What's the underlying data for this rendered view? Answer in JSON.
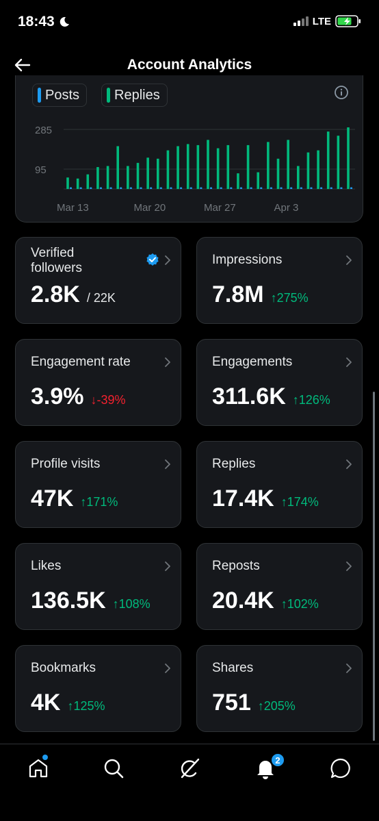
{
  "status_bar": {
    "time": "18:43",
    "network": "LTE"
  },
  "header": {
    "title": "Account Analytics"
  },
  "chart_data": {
    "type": "bar",
    "legend": [
      "Posts",
      "Replies"
    ],
    "y_ticks": [
      285,
      95
    ],
    "ylim": [
      0,
      300
    ],
    "x_tick_labels": [
      "Mar 13",
      "Mar 20",
      "Mar 27",
      "Apr 3"
    ],
    "series": [
      {
        "name": "Replies",
        "color": "#00ba7c",
        "values": [
          55,
          50,
          70,
          105,
          110,
          205,
          110,
          125,
          150,
          145,
          185,
          205,
          215,
          210,
          235,
          195,
          210,
          75,
          210,
          80,
          225,
          145,
          235,
          110,
          175,
          185,
          275,
          255,
          295
        ]
      },
      {
        "name": "Posts",
        "color": "#1d9bf0",
        "values": [
          8,
          8,
          8,
          8,
          8,
          8,
          8,
          8,
          8,
          8,
          8,
          8,
          8,
          8,
          8,
          8,
          8,
          8,
          8,
          8,
          8,
          8,
          8,
          8,
          8,
          8,
          8,
          8,
          8
        ]
      }
    ]
  },
  "stats": [
    {
      "label": "Verified followers",
      "value": "2.8K",
      "sub": "/ 22K",
      "change": "",
      "direction": "",
      "verified": true
    },
    {
      "label": "Impressions",
      "value": "7.8M",
      "sub": "",
      "change": "275%",
      "direction": "up"
    },
    {
      "label": "Engagement rate",
      "value": "3.9%",
      "sub": "",
      "change": "-39%",
      "direction": "down"
    },
    {
      "label": "Engagements",
      "value": "311.6K",
      "sub": "",
      "change": "126%",
      "direction": "up"
    },
    {
      "label": "Profile visits",
      "value": "47K",
      "sub": "",
      "change": "171%",
      "direction": "up"
    },
    {
      "label": "Replies",
      "value": "17.4K",
      "sub": "",
      "change": "174%",
      "direction": "up"
    },
    {
      "label": "Likes",
      "value": "136.5K",
      "sub": "",
      "change": "108%",
      "direction": "up"
    },
    {
      "label": "Reposts",
      "value": "20.4K",
      "sub": "",
      "change": "102%",
      "direction": "up"
    },
    {
      "label": "Bookmarks",
      "value": "4K",
      "sub": "",
      "change": "125%",
      "direction": "up"
    },
    {
      "label": "Shares",
      "value": "751",
      "sub": "",
      "change": "205%",
      "direction": "up"
    }
  ],
  "tabs": [
    {
      "name": "home",
      "icon": "home-icon"
    },
    {
      "name": "search",
      "icon": "search-icon"
    },
    {
      "name": "grok",
      "icon": "grok-icon"
    },
    {
      "name": "notifications",
      "icon": "bell-icon"
    },
    {
      "name": "messages",
      "icon": "message-icon"
    }
  ],
  "notifications_badge": "2",
  "colors": {
    "accent": "#1d9bf0",
    "up": "#00ba7c",
    "down": "#f4212e"
  }
}
